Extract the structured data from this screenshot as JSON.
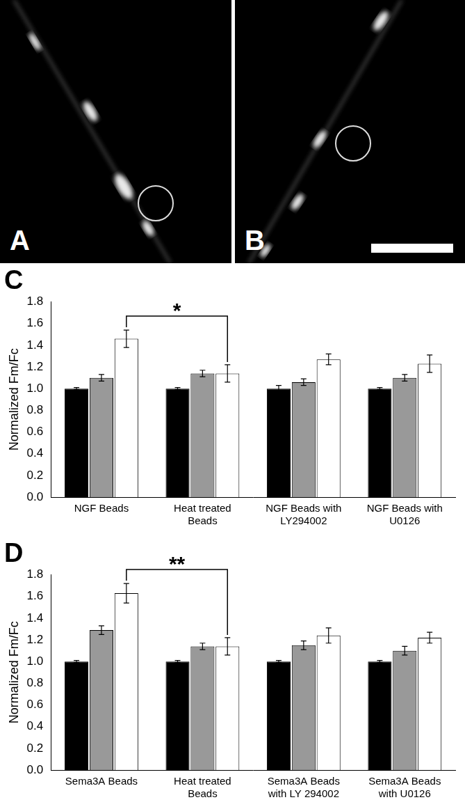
{
  "images": [
    {
      "label": "A"
    },
    {
      "label": "B"
    }
  ],
  "chart_data": [
    {
      "type": "bar",
      "title": "C",
      "y_label": "Normalized Fm/Fc",
      "categories": [
        "NGF Beads",
        "Heat treated Beads",
        "NGF Beads with LY294002",
        "NGF Beads with U0126"
      ],
      "series": [
        {
          "color": "#000000",
          "values": [
            1.0,
            1.0,
            1.0,
            1.0
          ],
          "errors": [
            0.01,
            0.01,
            0.03,
            0.01
          ]
        },
        {
          "color": "#999999",
          "values": [
            1.1,
            1.14,
            1.06,
            1.1
          ],
          "errors": [
            0.03,
            0.03,
            0.03,
            0.03
          ]
        },
        {
          "color": "#ffffff",
          "values": [
            1.46,
            1.14,
            1.27,
            1.23
          ],
          "errors": [
            0.08,
            0.08,
            0.05,
            0.08
          ]
        }
      ],
      "ylim": [
        0,
        1.8
      ],
      "yticks": [
        {
          "value": 0,
          "label": "0.0"
        },
        0.2,
        0.4,
        0.6,
        0.8,
        {
          "value": 1,
          "label": "1.0"
        },
        1.2,
        1.4,
        1.6,
        1.8
      ],
      "grid": false,
      "annotations": [
        {
          "text": "*",
          "from": "NGF Beads",
          "to": "Heat treated Beads"
        }
      ]
    },
    {
      "type": "bar",
      "title": "D",
      "y_label": "Normalized Fm/Fc",
      "categories": [
        "Sema3A Beads",
        "Heat treated Beads",
        "Sema3A Beads with LY 294002",
        "Sema3A Beads with U0126"
      ],
      "series": [
        {
          "color": "#000000",
          "values": [
            1.0,
            1.0,
            1.0,
            1.0
          ],
          "errors": [
            0.01,
            0.01,
            0.01,
            0.01
          ]
        },
        {
          "color": "#999999",
          "values": [
            1.29,
            1.14,
            1.15,
            1.1
          ],
          "errors": [
            0.04,
            0.03,
            0.04,
            0.04
          ]
        },
        {
          "color": "#ffffff",
          "values": [
            1.63,
            1.14,
            1.24,
            1.22
          ],
          "errors": [
            0.09,
            0.08,
            0.07,
            0.05
          ]
        }
      ],
      "ylim": [
        0,
        1.8
      ],
      "yticks": [
        {
          "value": 0,
          "label": "0.0"
        },
        0.2,
        0.4,
        0.6,
        0.8,
        {
          "value": 1,
          "label": "1.0"
        },
        1.2,
        1.4,
        1.6,
        1.8
      ],
      "grid": false,
      "annotations": [
        {
          "text": "**",
          "from": "Sema3A Beads",
          "to": "Heat treated Beads"
        }
      ]
    }
  ]
}
